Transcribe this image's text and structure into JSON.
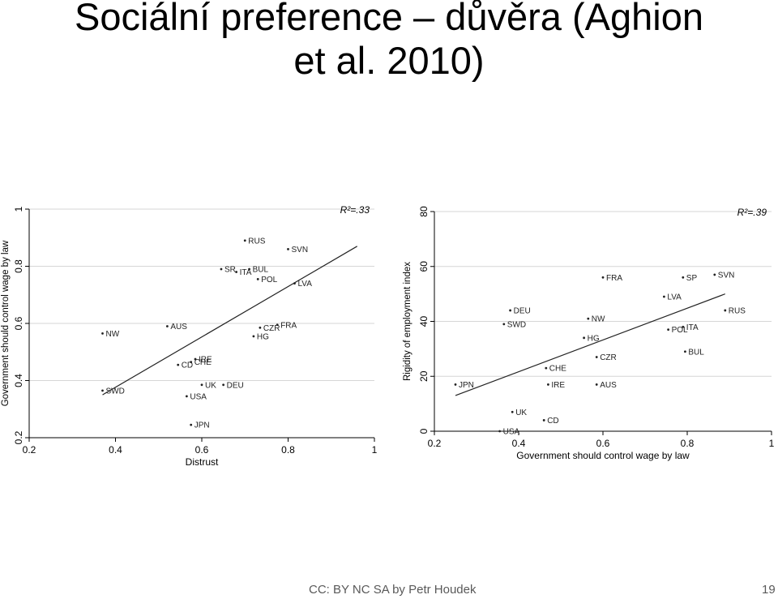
{
  "slide": {
    "title_line1": "Sociální preference – důvěra (Aghion",
    "title_line2": "et al. 2010)",
    "footer": "CC: BY NC SA by Petr Houdek",
    "page_number": "19"
  },
  "chart_data": [
    {
      "type": "scatter",
      "xlabel": "Distrust",
      "ylabel": "Government should control wage by law",
      "annotation": "R²=.33",
      "xlim": [
        0.2,
        1.0
      ],
      "ylim": [
        0.2,
        1.0
      ],
      "xticks": [
        "0.2",
        "0.4",
        "0.6",
        "0.8",
        "1"
      ],
      "yticks": [
        "0.2",
        "0.4",
        "0.6",
        "0.8",
        "1"
      ],
      "grid": true,
      "points": [
        {
          "label": "RUS",
          "x": 0.7,
          "y": 0.89
        },
        {
          "label": "SVN",
          "x": 0.8,
          "y": 0.86
        },
        {
          "label": "SR",
          "x": 0.645,
          "y": 0.79
        },
        {
          "label": "ITA",
          "x": 0.68,
          "y": 0.78
        },
        {
          "label": "BUL",
          "x": 0.71,
          "y": 0.79
        },
        {
          "label": "POL",
          "x": 0.73,
          "y": 0.755
        },
        {
          "label": "LVA",
          "x": 0.815,
          "y": 0.74
        },
        {
          "label": "NW",
          "x": 0.37,
          "y": 0.565
        },
        {
          "label": "AUS",
          "x": 0.52,
          "y": 0.59
        },
        {
          "label": "FRA",
          "x": 0.775,
          "y": 0.595
        },
        {
          "label": "CZR",
          "x": 0.735,
          "y": 0.585
        },
        {
          "label": "HG",
          "x": 0.72,
          "y": 0.555
        },
        {
          "label": "IRE",
          "x": 0.585,
          "y": 0.475
        },
        {
          "label": "CHE",
          "x": 0.575,
          "y": 0.465
        },
        {
          "label": "CD",
          "x": 0.545,
          "y": 0.455
        },
        {
          "label": "UK",
          "x": 0.6,
          "y": 0.385
        },
        {
          "label": "DEU",
          "x": 0.65,
          "y": 0.385
        },
        {
          "label": "SWD",
          "x": 0.37,
          "y": 0.365
        },
        {
          "label": "USA",
          "x": 0.565,
          "y": 0.345
        },
        {
          "label": "JPN",
          "x": 0.575,
          "y": 0.245
        }
      ],
      "fit_line": {
        "x": [
          0.37,
          0.96
        ],
        "y": [
          0.35,
          0.87
        ]
      }
    },
    {
      "type": "scatter",
      "xlabel": "Government should control wage by law",
      "ylabel": "Rigidity of employment index",
      "annotation": "R²=.39",
      "xlim": [
        0.2,
        1.0
      ],
      "ylim": [
        0,
        80
      ],
      "xticks": [
        "0.2",
        "0.4",
        "0.6",
        "0.8",
        "1"
      ],
      "yticks": [
        "0",
        "20",
        "40",
        "60",
        "80"
      ],
      "grid": true,
      "points": [
        {
          "label": "FRA",
          "x": 0.6,
          "y": 56
        },
        {
          "label": "SP",
          "x": 0.79,
          "y": 56
        },
        {
          "label": "SVN",
          "x": 0.865,
          "y": 57
        },
        {
          "label": "LVA",
          "x": 0.745,
          "y": 49
        },
        {
          "label": "DEU",
          "x": 0.38,
          "y": 44
        },
        {
          "label": "RUS",
          "x": 0.89,
          "y": 44
        },
        {
          "label": "SWD",
          "x": 0.365,
          "y": 39
        },
        {
          "label": "NW",
          "x": 0.565,
          "y": 41
        },
        {
          "label": "POL",
          "x": 0.755,
          "y": 37
        },
        {
          "label": "ITA",
          "x": 0.79,
          "y": 38
        },
        {
          "label": "HG",
          "x": 0.555,
          "y": 34
        },
        {
          "label": "BUL",
          "x": 0.795,
          "y": 29
        },
        {
          "label": "CZR",
          "x": 0.585,
          "y": 27
        },
        {
          "label": "CHE",
          "x": 0.465,
          "y": 23
        },
        {
          "label": "JPN",
          "x": 0.25,
          "y": 17
        },
        {
          "label": "IRE",
          "x": 0.47,
          "y": 17
        },
        {
          "label": "AUS",
          "x": 0.585,
          "y": 17
        },
        {
          "label": "UK",
          "x": 0.385,
          "y": 7
        },
        {
          "label": "CD",
          "x": 0.46,
          "y": 4
        },
        {
          "label": "USA",
          "x": 0.355,
          "y": 0
        }
      ],
      "fit_line": {
        "x": [
          0.25,
          0.89
        ],
        "y": [
          13,
          50
        ]
      }
    }
  ]
}
